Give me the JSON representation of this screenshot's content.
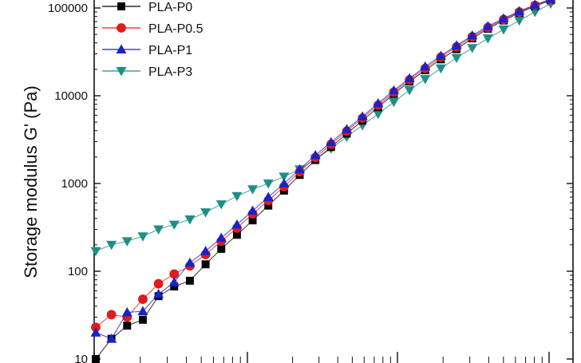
{
  "chart_data": {
    "type": "line",
    "title": "",
    "xlabel": "",
    "ylabel": "Storage modulus G' (Pa)",
    "y_scale": "log",
    "x_scale": "log",
    "ylim": [
      10,
      150000
    ],
    "y_ticks": [
      10,
      100,
      1000,
      10000,
      100000
    ],
    "y_tick_labels": [
      "10",
      "100",
      "1000",
      "10000",
      "100000"
    ],
    "x_tick_labels": [],
    "legend_position": "top-left",
    "grid": false,
    "x_points": [
      1,
      2,
      3,
      4,
      5,
      6,
      7,
      8,
      9,
      10,
      11,
      12,
      13,
      14,
      15,
      16,
      17,
      18,
      19,
      20,
      21,
      22,
      23,
      24,
      25,
      26,
      27,
      28,
      29,
      30
    ],
    "series": [
      {
        "name": "PLA-P0",
        "color": "#000000",
        "marker": "square",
        "values": [
          10,
          17,
          24,
          28,
          52,
          67,
          78,
          120,
          180,
          260,
          380,
          560,
          830,
          1250,
          1850,
          2600,
          3700,
          5200,
          7400,
          10500,
          14500,
          19500,
          26000,
          34000,
          45000,
          58000,
          72000,
          88000,
          105000,
          122000
        ]
      },
      {
        "name": "PLA-P0.5",
        "color": "#e01b1b",
        "marker": "circle",
        "values": [
          23,
          32,
          30,
          48,
          72,
          93,
          115,
          155,
          220,
          310,
          450,
          640,
          920,
          1360,
          1980,
          2800,
          3950,
          5550,
          7800,
          11000,
          15200,
          20500,
          27500,
          36000,
          47000,
          60000,
          74000,
          90000,
          107000,
          124000
        ]
      },
      {
        "name": "PLA-P1",
        "color": "#1a23c8",
        "marker": "triangle-up",
        "values": [
          20,
          17,
          34,
          35,
          55,
          75,
          125,
          170,
          240,
          340,
          490,
          700,
          1000,
          1450,
          2100,
          2950,
          4150,
          5800,
          8200,
          11500,
          15800,
          21500,
          28500,
          37500,
          48500,
          62000,
          76000,
          92000,
          109000,
          126000
        ]
      },
      {
        "name": "PLA-P3",
        "color": "#1f8f86",
        "marker": "triangle-down",
        "values": [
          170,
          200,
          220,
          250,
          300,
          340,
          390,
          470,
          580,
          720,
          860,
          1000,
          1200,
          1450,
          1900,
          2500,
          3400,
          4600,
          6200,
          8500,
          11600,
          15500,
          20500,
          27000,
          35000,
          45000,
          57000,
          72000,
          90000,
          112000
        ]
      }
    ]
  }
}
